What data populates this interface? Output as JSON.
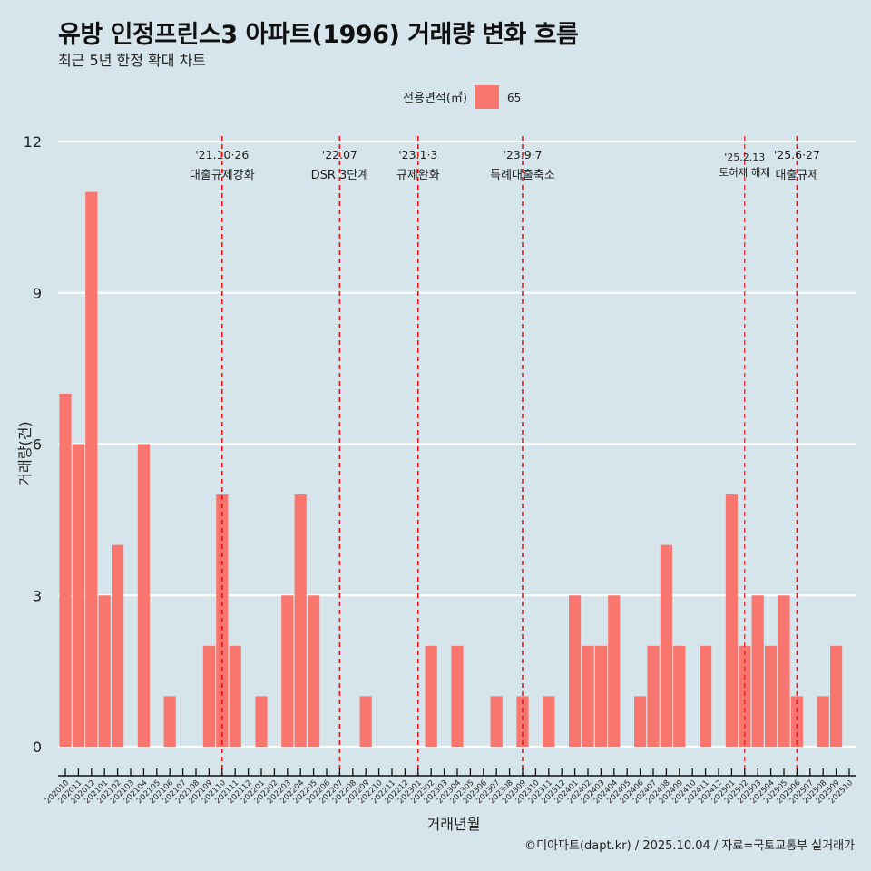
{
  "title": "유방 인정프린스3 아파트(1996) 거래량 변화 흐름",
  "subtitle": "최근 5년 한정 확대 차트",
  "caption": "©디아파트(dapt.kr) / 2025.10.04 / 자료=국토교통부 실거래가",
  "chart_data": {
    "type": "bar",
    "xlabel": "거래년월",
    "ylabel": "거래량(건)",
    "ylim": [
      0,
      12
    ],
    "yticks": [
      0,
      3,
      6,
      9,
      12
    ],
    "grid": true,
    "legend": {
      "title": "전용면적(㎡)",
      "entries": [
        "65"
      ],
      "placement": "top"
    },
    "colors": {
      "bar": "#f8766d",
      "event_line": "#e8161b"
    },
    "categories": [
      "202010",
      "202011",
      "202012",
      "202101",
      "202102",
      "202103",
      "202104",
      "202105",
      "202106",
      "202107",
      "202108",
      "202109",
      "202110",
      "202111",
      "202112",
      "202201",
      "202202",
      "202203",
      "202204",
      "202205",
      "202206",
      "202207",
      "202208",
      "202209",
      "202210",
      "202211",
      "202212",
      "202301",
      "202302",
      "202303",
      "202304",
      "202305",
      "202306",
      "202307",
      "202308",
      "202309",
      "202310",
      "202311",
      "202312",
      "202401",
      "202402",
      "202403",
      "202404",
      "202405",
      "202406",
      "202407",
      "202408",
      "202409",
      "202410",
      "202411",
      "202412",
      "202501",
      "202502",
      "202503",
      "202504",
      "202505",
      "202506",
      "202507",
      "202508",
      "202509",
      "202510"
    ],
    "series": [
      {
        "name": "65",
        "values": [
          7,
          6,
          11,
          3,
          4,
          0,
          6,
          0,
          1,
          0,
          0,
          2,
          5,
          2,
          0,
          1,
          0,
          3,
          5,
          3,
          0,
          0,
          0,
          1,
          0,
          0,
          0,
          0,
          2,
          0,
          2,
          0,
          0,
          1,
          0,
          1,
          0,
          1,
          0,
          3,
          2,
          2,
          3,
          0,
          1,
          2,
          4,
          2,
          0,
          2,
          0,
          5,
          2,
          3,
          2,
          3,
          1,
          0,
          1,
          2,
          0
        ]
      }
    ],
    "annotations": [
      {
        "x": "202110",
        "date": "'21.10·26",
        "label": "대출규제강화",
        "style": "major"
      },
      {
        "x": "202207",
        "date": "'22.07",
        "label": "DSR 3단계",
        "style": "major"
      },
      {
        "x": "202301",
        "date": "'23.1·3",
        "label": "규제완화",
        "style": "major"
      },
      {
        "x": "202309",
        "date": "'23.9·7",
        "label": "특례대출축소",
        "style": "major"
      },
      {
        "x": "202502",
        "date": "'25.2.13",
        "label": "토허제 해제",
        "style": "minor"
      },
      {
        "x": "202506",
        "date": "'25.6·27",
        "label": "대출규제",
        "style": "major"
      }
    ]
  }
}
